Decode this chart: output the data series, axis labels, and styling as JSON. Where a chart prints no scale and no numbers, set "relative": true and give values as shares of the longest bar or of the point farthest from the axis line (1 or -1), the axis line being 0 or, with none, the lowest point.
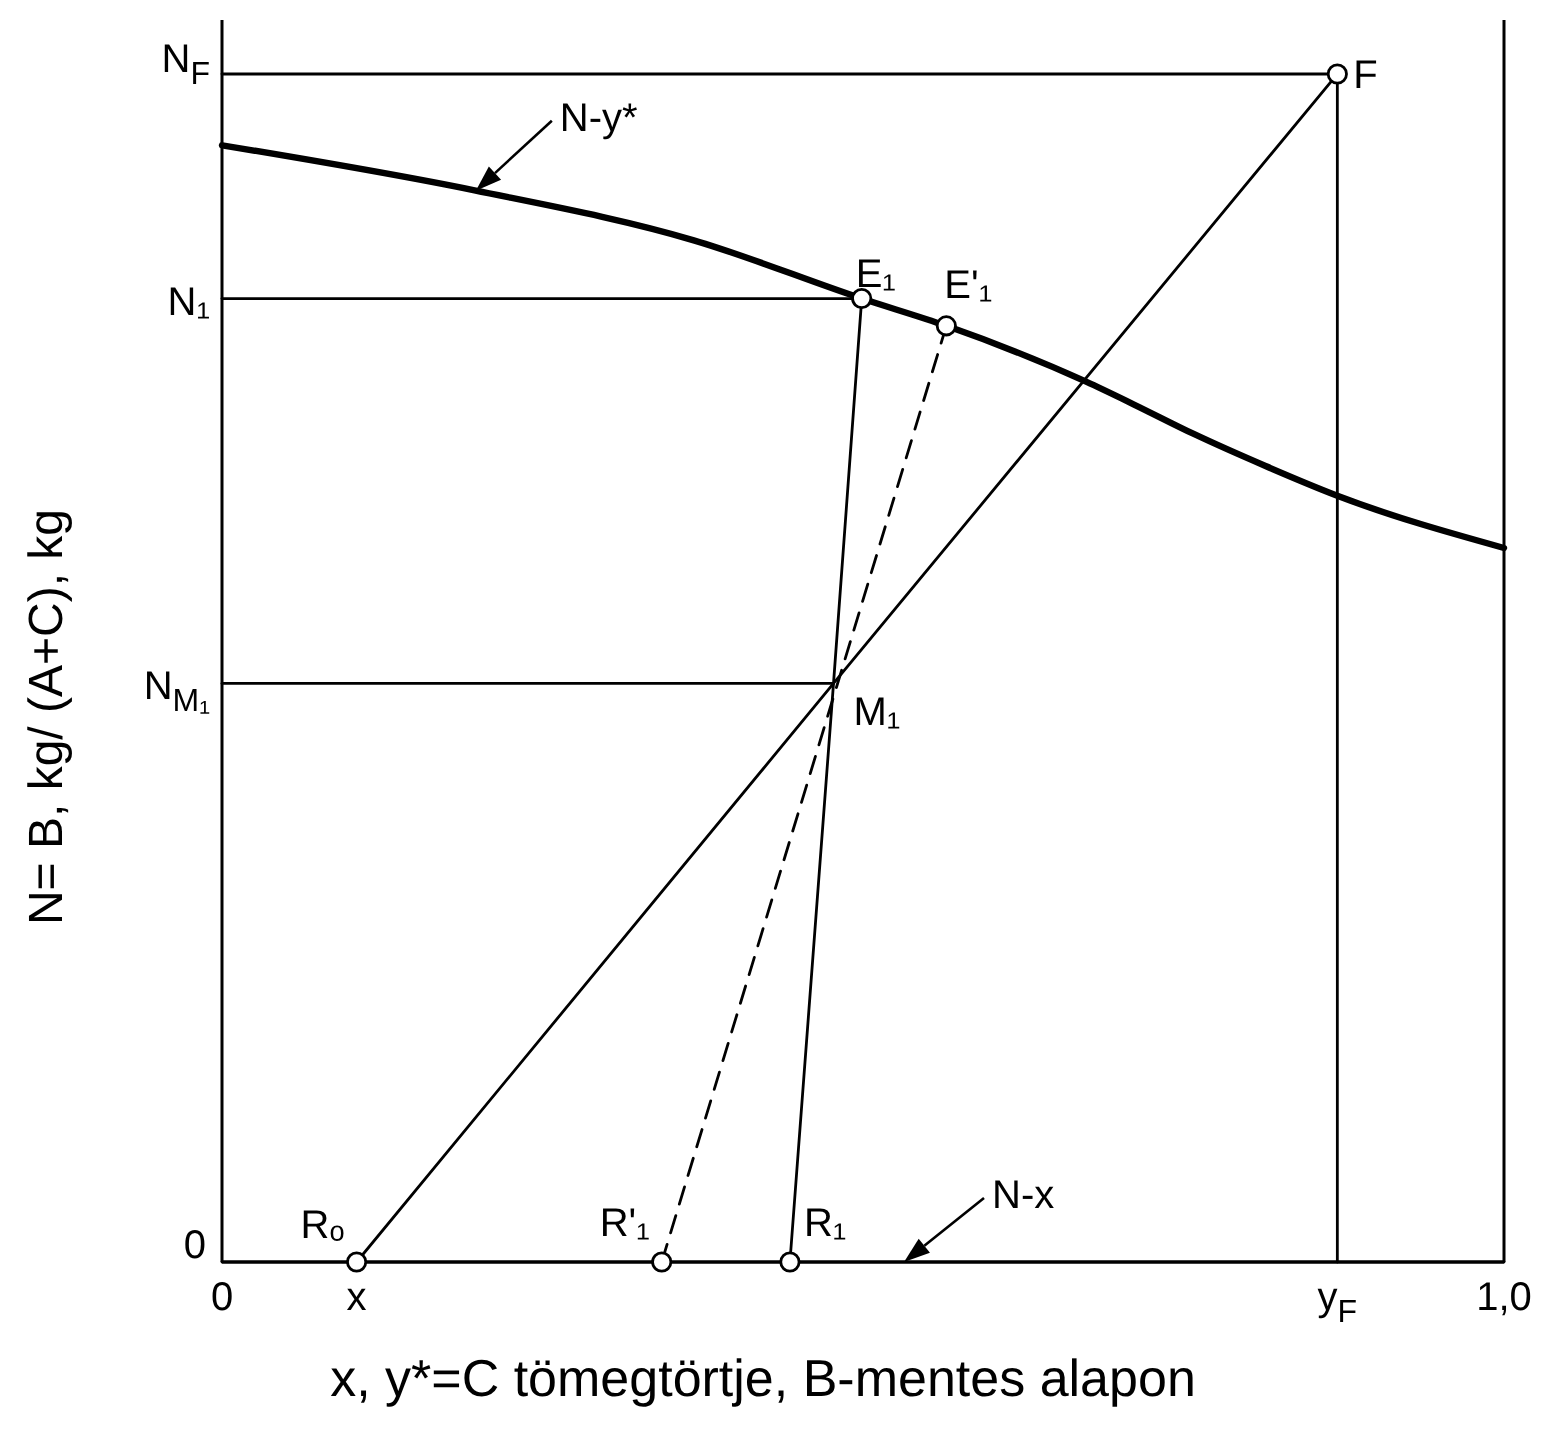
{
  "chart_data": {
    "type": "line",
    "xlabel": "x, y*=C tömegtörtje, B-mentes alapon",
    "ylabel": "N= B, kg/ (A+C), kg",
    "relative": true,
    "xlim": [
      0,
      1
    ],
    "xticks": [
      0,
      {
        "value": 0.105,
        "label": "x"
      },
      {
        "value": 0.87,
        "label": "y$_{F}$"
      },
      {
        "value": 1,
        "label": "1,0"
      }
    ],
    "series": [
      {
        "name": "N-y*",
        "color": "#000000",
        "x": [
          0,
          0.197,
          0.368,
          0.499,
          0.565,
          0.674,
          0.711,
          0.758,
          0.814,
          0.87,
          1
        ],
        "values": [
          0.94,
          0.902,
          0.86,
          0.811,
          0.788,
          0.741,
          0.722,
          0.697,
          0.67,
          0.645,
          0.601
        ]
      },
      {
        "name": "N-x",
        "color": "#000000",
        "x": [
          0,
          1
        ],
        "values": [
          0,
          0
        ]
      },
      {
        "color": "#000000",
        "x": [
          0.105,
          0.477,
          0.87
        ],
        "values": [
          0,
          0.487,
          1
        ]
      },
      {
        "color": "#000000",
        "x": [
          0.499,
          0.477,
          0.443
        ],
        "values": [
          0.811,
          0.487,
          0
        ]
      },
      {
        "color": "#000000",
        "x": [
          0.565,
          0.343
        ],
        "values": [
          0.788,
          0
        ],
        "line_style": "dashed"
      },
      {
        "color": "#000000",
        "x": [
          0,
          0.87
        ],
        "values": [
          1,
          1
        ]
      },
      {
        "color": "#000000",
        "x": [
          0,
          0.499
        ],
        "values": [
          0.811,
          0.811
        ]
      },
      {
        "color": "#000000",
        "x": [
          0,
          0.477
        ],
        "values": [
          0.487,
          0.487
        ]
      },
      {
        "color": "#000000",
        "x": [
          0.87,
          0.87
        ],
        "values": [
          1,
          0
        ]
      },
      {
        "type": "scatter",
        "color": "#000000",
        "marker": "circle",
        "x": [
          0.87,
          0.499,
          0.565,
          0.105,
          0.343,
          0.443
        ],
        "values": [
          1,
          0.811,
          0.788,
          0,
          0,
          0
        ]
      }
    ],
    "annotations": [
      {
        "text": "N$_{F}$",
        "x": 0,
        "y": 1
      },
      {
        "text": "N₁",
        "x": 0,
        "y": 0.811
      },
      {
        "text": "N$_{M₁}$",
        "x": 0,
        "y": 0.487
      },
      {
        "text": "0",
        "x": 0,
        "y": 0
      },
      {
        "text": "F",
        "x": 0.87,
        "y": 1
      },
      {
        "text": "E₁",
        "x": 0.499,
        "y": 0.811
      },
      {
        "text": "E'₁",
        "x": 0.565,
        "y": 0.788
      },
      {
        "text": "M₁",
        "x": 0.477,
        "y": 0.487
      },
      {
        "text": "Rₒ",
        "x": 0.105,
        "y": 0
      },
      {
        "text": "R'₁",
        "x": 0.343,
        "y": 0
      },
      {
        "text": "R₁",
        "x": 0.443,
        "y": 0
      }
    ]
  }
}
